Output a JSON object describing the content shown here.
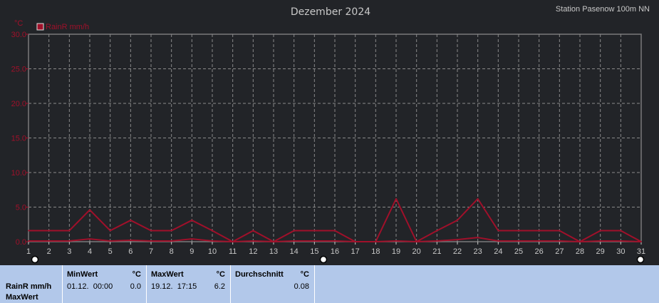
{
  "chart_data": {
    "type": "line",
    "title": "Dezember 2024",
    "station": "Station Pasenow 100m NN",
    "yunit": "°C",
    "ylim": [
      0,
      30
    ],
    "yticks": [
      "0.0",
      "5.0",
      "10.0",
      "15.0",
      "20.0",
      "25.0",
      "30.0"
    ],
    "xlim": [
      1,
      31
    ],
    "x": [
      1,
      2,
      3,
      4,
      5,
      6,
      7,
      8,
      9,
      10,
      11,
      12,
      13,
      14,
      15,
      16,
      17,
      18,
      19,
      20,
      21,
      22,
      23,
      24,
      25,
      26,
      27,
      28,
      29,
      30,
      31
    ],
    "legend": "RainR mm/h",
    "legend_position": "top-left",
    "grid": true,
    "series": [
      {
        "name": "RainR mm/h",
        "color": "#a0102a",
        "values": [
          1.6,
          1.6,
          1.6,
          4.6,
          1.6,
          3.1,
          1.6,
          1.6,
          3.1,
          1.6,
          0.0,
          1.6,
          0.0,
          1.6,
          1.6,
          1.6,
          0.0,
          0.0,
          6.2,
          0.0,
          1.6,
          3.1,
          6.2,
          1.6,
          1.6,
          1.6,
          1.6,
          0.0,
          1.6,
          1.6,
          0.0
        ]
      },
      {
        "color": "#a0102a",
        "values": [
          0.1,
          0.1,
          0.1,
          0.4,
          0.1,
          0.2,
          0.1,
          0.1,
          0.4,
          0.1,
          0.0,
          0.1,
          0.0,
          0.1,
          0.1,
          0.1,
          0.0,
          0.0,
          0.1,
          0.0,
          0.1,
          0.3,
          0.6,
          0.1,
          0.1,
          0.1,
          0.1,
          0.0,
          0.1,
          0.1,
          0.0
        ]
      }
    ]
  },
  "stats": {
    "row_label": "RainR mm/h",
    "row_sub": "MaxWert",
    "min": {
      "label": "MinWert",
      "unit": "°C",
      "date": "01.12.  00:00",
      "value": "0.0"
    },
    "max": {
      "label": "MaxWert",
      "unit": "°C",
      "date": "19.12.  17:15",
      "value": "6.2"
    },
    "avg": {
      "label": "Durchschnitt",
      "unit": "°C",
      "value": "0.08"
    }
  }
}
